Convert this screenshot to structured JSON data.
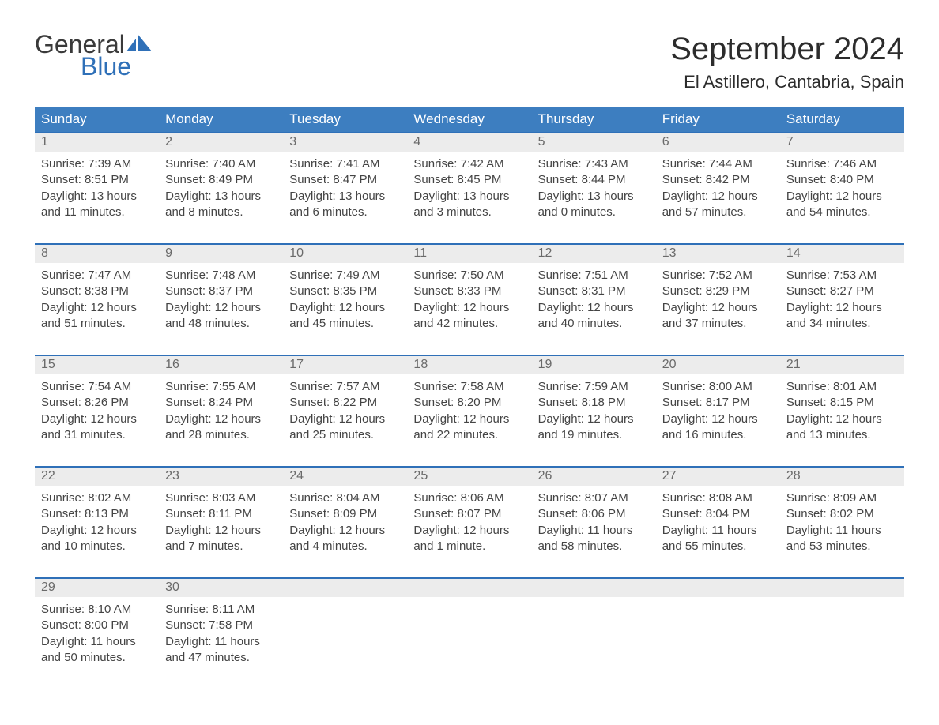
{
  "brand": {
    "line1": "General",
    "line2": "Blue",
    "color1": "#3a3a3a",
    "color2": "#2f70b8"
  },
  "title": "September 2024",
  "location": "El Astillero, Cantabria, Spain",
  "colors": {
    "header_bg": "#3d7ec0",
    "header_text": "#ffffff",
    "week_top_border": "#2f70b8",
    "daynum_bg": "#ececec",
    "daynum_text": "#6a6a6a",
    "cell_text": "#444444",
    "page_bg": "#ffffff"
  },
  "typography": {
    "month_title_pt": 40,
    "location_pt": 22,
    "weekday_pt": 17,
    "cell_pt": 15
  },
  "weekdays": [
    "Sunday",
    "Monday",
    "Tuesday",
    "Wednesday",
    "Thursday",
    "Friday",
    "Saturday"
  ],
  "weeks": [
    {
      "nums": [
        "1",
        "2",
        "3",
        "4",
        "5",
        "6",
        "7"
      ],
      "cells": [
        {
          "sunrise": "Sunrise: 7:39 AM",
          "sunset": "Sunset: 8:51 PM",
          "d1": "Daylight: 13 hours",
          "d2": "and 11 minutes."
        },
        {
          "sunrise": "Sunrise: 7:40 AM",
          "sunset": "Sunset: 8:49 PM",
          "d1": "Daylight: 13 hours",
          "d2": "and 8 minutes."
        },
        {
          "sunrise": "Sunrise: 7:41 AM",
          "sunset": "Sunset: 8:47 PM",
          "d1": "Daylight: 13 hours",
          "d2": "and 6 minutes."
        },
        {
          "sunrise": "Sunrise: 7:42 AM",
          "sunset": "Sunset: 8:45 PM",
          "d1": "Daylight: 13 hours",
          "d2": "and 3 minutes."
        },
        {
          "sunrise": "Sunrise: 7:43 AM",
          "sunset": "Sunset: 8:44 PM",
          "d1": "Daylight: 13 hours",
          "d2": "and 0 minutes."
        },
        {
          "sunrise": "Sunrise: 7:44 AM",
          "sunset": "Sunset: 8:42 PM",
          "d1": "Daylight: 12 hours",
          "d2": "and 57 minutes."
        },
        {
          "sunrise": "Sunrise: 7:46 AM",
          "sunset": "Sunset: 8:40 PM",
          "d1": "Daylight: 12 hours",
          "d2": "and 54 minutes."
        }
      ]
    },
    {
      "nums": [
        "8",
        "9",
        "10",
        "11",
        "12",
        "13",
        "14"
      ],
      "cells": [
        {
          "sunrise": "Sunrise: 7:47 AM",
          "sunset": "Sunset: 8:38 PM",
          "d1": "Daylight: 12 hours",
          "d2": "and 51 minutes."
        },
        {
          "sunrise": "Sunrise: 7:48 AM",
          "sunset": "Sunset: 8:37 PM",
          "d1": "Daylight: 12 hours",
          "d2": "and 48 minutes."
        },
        {
          "sunrise": "Sunrise: 7:49 AM",
          "sunset": "Sunset: 8:35 PM",
          "d1": "Daylight: 12 hours",
          "d2": "and 45 minutes."
        },
        {
          "sunrise": "Sunrise: 7:50 AM",
          "sunset": "Sunset: 8:33 PM",
          "d1": "Daylight: 12 hours",
          "d2": "and 42 minutes."
        },
        {
          "sunrise": "Sunrise: 7:51 AM",
          "sunset": "Sunset: 8:31 PM",
          "d1": "Daylight: 12 hours",
          "d2": "and 40 minutes."
        },
        {
          "sunrise": "Sunrise: 7:52 AM",
          "sunset": "Sunset: 8:29 PM",
          "d1": "Daylight: 12 hours",
          "d2": "and 37 minutes."
        },
        {
          "sunrise": "Sunrise: 7:53 AM",
          "sunset": "Sunset: 8:27 PM",
          "d1": "Daylight: 12 hours",
          "d2": "and 34 minutes."
        }
      ]
    },
    {
      "nums": [
        "15",
        "16",
        "17",
        "18",
        "19",
        "20",
        "21"
      ],
      "cells": [
        {
          "sunrise": "Sunrise: 7:54 AM",
          "sunset": "Sunset: 8:26 PM",
          "d1": "Daylight: 12 hours",
          "d2": "and 31 minutes."
        },
        {
          "sunrise": "Sunrise: 7:55 AM",
          "sunset": "Sunset: 8:24 PM",
          "d1": "Daylight: 12 hours",
          "d2": "and 28 minutes."
        },
        {
          "sunrise": "Sunrise: 7:57 AM",
          "sunset": "Sunset: 8:22 PM",
          "d1": "Daylight: 12 hours",
          "d2": "and 25 minutes."
        },
        {
          "sunrise": "Sunrise: 7:58 AM",
          "sunset": "Sunset: 8:20 PM",
          "d1": "Daylight: 12 hours",
          "d2": "and 22 minutes."
        },
        {
          "sunrise": "Sunrise: 7:59 AM",
          "sunset": "Sunset: 8:18 PM",
          "d1": "Daylight: 12 hours",
          "d2": "and 19 minutes."
        },
        {
          "sunrise": "Sunrise: 8:00 AM",
          "sunset": "Sunset: 8:17 PM",
          "d1": "Daylight: 12 hours",
          "d2": "and 16 minutes."
        },
        {
          "sunrise": "Sunrise: 8:01 AM",
          "sunset": "Sunset: 8:15 PM",
          "d1": "Daylight: 12 hours",
          "d2": "and 13 minutes."
        }
      ]
    },
    {
      "nums": [
        "22",
        "23",
        "24",
        "25",
        "26",
        "27",
        "28"
      ],
      "cells": [
        {
          "sunrise": "Sunrise: 8:02 AM",
          "sunset": "Sunset: 8:13 PM",
          "d1": "Daylight: 12 hours",
          "d2": "and 10 minutes."
        },
        {
          "sunrise": "Sunrise: 8:03 AM",
          "sunset": "Sunset: 8:11 PM",
          "d1": "Daylight: 12 hours",
          "d2": "and 7 minutes."
        },
        {
          "sunrise": "Sunrise: 8:04 AM",
          "sunset": "Sunset: 8:09 PM",
          "d1": "Daylight: 12 hours",
          "d2": "and 4 minutes."
        },
        {
          "sunrise": "Sunrise: 8:06 AM",
          "sunset": "Sunset: 8:07 PM",
          "d1": "Daylight: 12 hours",
          "d2": "and 1 minute."
        },
        {
          "sunrise": "Sunrise: 8:07 AM",
          "sunset": "Sunset: 8:06 PM",
          "d1": "Daylight: 11 hours",
          "d2": "and 58 minutes."
        },
        {
          "sunrise": "Sunrise: 8:08 AM",
          "sunset": "Sunset: 8:04 PM",
          "d1": "Daylight: 11 hours",
          "d2": "and 55 minutes."
        },
        {
          "sunrise": "Sunrise: 8:09 AM",
          "sunset": "Sunset: 8:02 PM",
          "d1": "Daylight: 11 hours",
          "d2": "and 53 minutes."
        }
      ]
    },
    {
      "nums": [
        "29",
        "30",
        "",
        "",
        "",
        "",
        ""
      ],
      "cells": [
        {
          "sunrise": "Sunrise: 8:10 AM",
          "sunset": "Sunset: 8:00 PM",
          "d1": "Daylight: 11 hours",
          "d2": "and 50 minutes."
        },
        {
          "sunrise": "Sunrise: 8:11 AM",
          "sunset": "Sunset: 7:58 PM",
          "d1": "Daylight: 11 hours",
          "d2": "and 47 minutes."
        },
        {
          "sunrise": "",
          "sunset": "",
          "d1": "",
          "d2": ""
        },
        {
          "sunrise": "",
          "sunset": "",
          "d1": "",
          "d2": ""
        },
        {
          "sunrise": "",
          "sunset": "",
          "d1": "",
          "d2": ""
        },
        {
          "sunrise": "",
          "sunset": "",
          "d1": "",
          "d2": ""
        },
        {
          "sunrise": "",
          "sunset": "",
          "d1": "",
          "d2": ""
        }
      ]
    }
  ]
}
